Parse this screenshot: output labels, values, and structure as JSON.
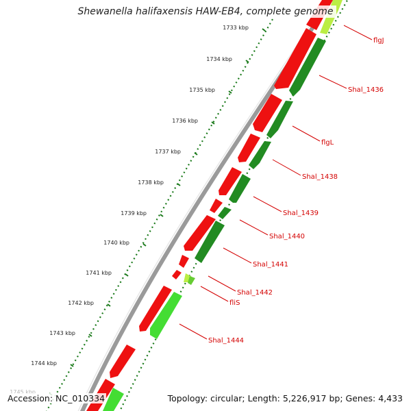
{
  "title": "Shewanella halifaxensis HAW-EB4, complete genome",
  "accession": "Accession: NC_010334",
  "summary": "Topology: circular; Length: 5,226,917 bp; Genes: 4,433",
  "ticks": [
    {
      "label": "1733 kbp"
    },
    {
      "label": "1734 kbp"
    },
    {
      "label": "1735 kbp"
    },
    {
      "label": "1736 kbp"
    },
    {
      "label": "1737 kbp"
    },
    {
      "label": "1738 kbp"
    },
    {
      "label": "1739 kbp"
    },
    {
      "label": "1740 kbp"
    },
    {
      "label": "1741 kbp"
    },
    {
      "label": "1742 kbp"
    },
    {
      "label": "1743 kbp"
    },
    {
      "label": "1744 kbp"
    },
    {
      "label": "1745 kbp"
    }
  ],
  "gene_labels": [
    "flgJ",
    "Shal_1436",
    "flgL",
    "Shal_1438",
    "Shal_1439",
    "Shal_1440",
    "Shal_1441",
    "Shal_1442",
    "fliS",
    "Shal_1444"
  ],
  "colors": {
    "red": "#ee1111",
    "dark_green": "#228b22",
    "light_green": "#44dd33",
    "yellow_green": "#bbee44",
    "label": "#d40000",
    "dots": "#1a7a1a"
  }
}
